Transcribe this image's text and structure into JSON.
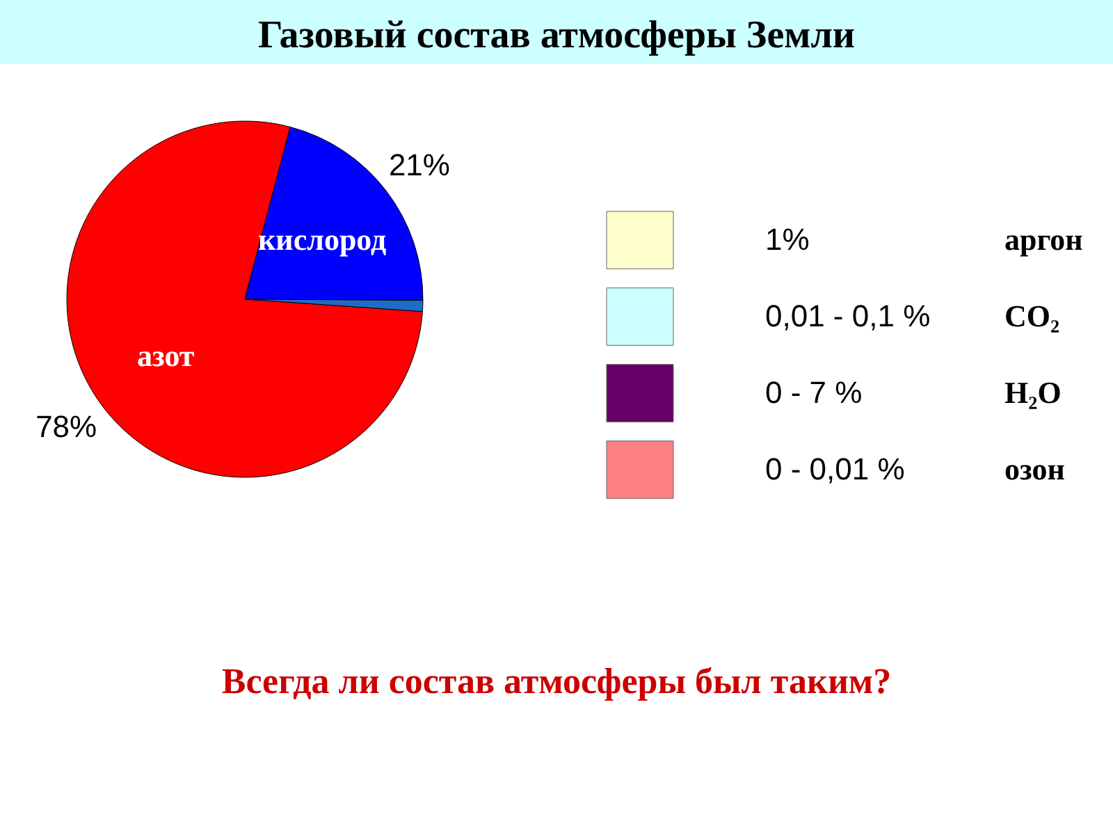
{
  "chart_data": [
    {
      "type": "pie",
      "title": "Газовый состав атмосферы Земли",
      "categories": [
        "азот",
        "кислород",
        null
      ],
      "values": [
        78,
        21,
        1
      ],
      "colors": [
        "#ff0000",
        "#0000ff",
        "#1f6cc8"
      ],
      "value_labels": [
        "78%",
        "21%",
        null
      ],
      "annotations": [
        "Всегда ли состав атмосферы был таким?"
      ]
    },
    {
      "type": "other",
      "categories": [
        "аргон",
        "CO₂",
        "H₂O",
        "озон"
      ],
      "value_labels": [
        "1%",
        "0,01 - 0,1 %",
        "0 - 7 %",
        "0 - 0,01 %"
      ],
      "colors": [
        "#ffffcc",
        "#ccffff",
        "#660066",
        "#ff8080"
      ]
    }
  ]
}
